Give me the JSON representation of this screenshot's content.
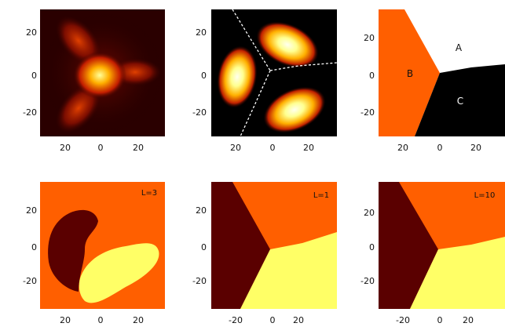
{
  "panels": [
    {
      "id": "p1",
      "yticks": [
        "20",
        "0",
        "-20"
      ],
      "xticks": [
        "20",
        "0",
        "20"
      ]
    },
    {
      "id": "p2",
      "yticks": [
        "20",
        "0",
        "-20"
      ],
      "xticks": [
        "20",
        "0",
        "20"
      ]
    },
    {
      "id": "p3",
      "yticks": [
        "20",
        "0",
        "-20"
      ],
      "xticks": [
        "20",
        "0",
        "20"
      ],
      "regions": {
        "a": "A",
        "b": "B",
        "c": "C"
      }
    },
    {
      "id": "p4",
      "yticks": [
        "20",
        "0",
        "-20"
      ],
      "xticks": [
        "20",
        "0",
        "20"
      ],
      "label": "L=3"
    },
    {
      "id": "p5",
      "yticks": [
        "20",
        "0",
        "-20"
      ],
      "xticks": [
        "-20",
        "0",
        "20"
      ],
      "label": "L=1"
    },
    {
      "id": "p6",
      "yticks": [
        "20",
        "0",
        "-20"
      ],
      "xticks": [
        "-20",
        "0",
        "20"
      ],
      "label": "L=10"
    }
  ],
  "colors": {
    "black": "#000000",
    "dark_red": "#5a0000",
    "orange": "#ff5f00",
    "pale_yellow": "#ffff66",
    "white": "#ffffff"
  }
}
